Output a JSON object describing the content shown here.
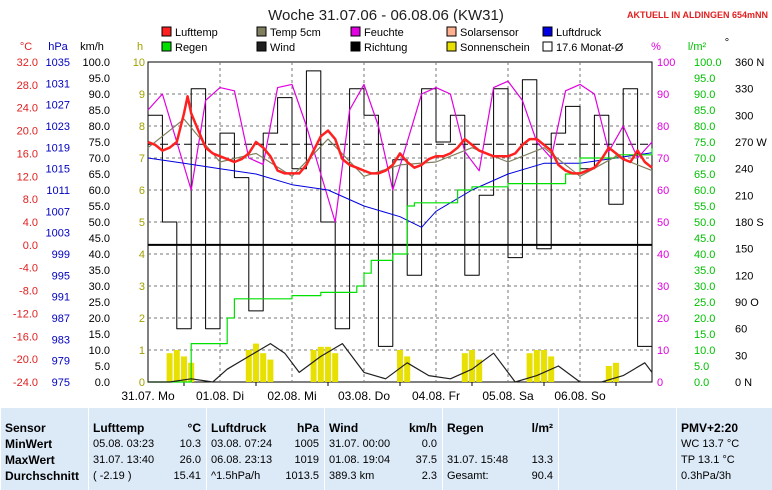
{
  "header": {
    "title": "Woche 31.07.06 - 06.08.06 (KW31)",
    "live_label": "AKTUELL IN ALDINGEN 654mNN"
  },
  "axes": {
    "unit_c": "°C",
    "unit_hpa": "hPa",
    "unit_kmh": "km/h",
    "unit_h": "h",
    "unit_pct": "%",
    "unit_lm2": "l/m²",
    "unit_deg": "°",
    "temp_ticks": [
      "32.0",
      "28.0",
      "24.0",
      "20.0",
      "16.0",
      "12.0",
      "8.0",
      "4.0",
      "0.0",
      "-4.0",
      "-8.0",
      "-12.0",
      "-16.0",
      "-20.0",
      "-24.0"
    ],
    "pressure_ticks": [
      "1035",
      "1031",
      "1027",
      "1023",
      "1019",
      "1015",
      "1011",
      "1007",
      "1003",
      "999",
      "995",
      "991",
      "987",
      "983",
      "979",
      "975"
    ],
    "wind_ticks": [
      "100.0",
      "95.0",
      "90.0",
      "85.0",
      "80.0",
      "75.0",
      "70.0",
      "65.0",
      "60.0",
      "55.0",
      "50.0",
      "45.0",
      "40.0",
      "35.0",
      "30.0",
      "25.0",
      "20.0",
      "15.0",
      "10.0",
      "5.0",
      "0.0"
    ],
    "sun_ticks": [
      "10",
      "9",
      "8",
      "7",
      "6",
      "5",
      "4",
      "3",
      "2",
      "1",
      "0"
    ],
    "humidity_ticks": [
      "100",
      "90",
      "80",
      "70",
      "60",
      "50",
      "40",
      "30",
      "20",
      "10",
      "0"
    ],
    "rain_ticks": [
      "100.0",
      "95.0",
      "90.0",
      "85.0",
      "80.0",
      "75.0",
      "70.0",
      "65.0",
      "60.0",
      "55.0",
      "50.0",
      "45.0",
      "40.0",
      "35.0",
      "30.0",
      "25.0",
      "20.0",
      "15.0",
      "10.0",
      "5.0",
      "0.0"
    ],
    "dir_ticks": [
      "360 N",
      "330",
      "300",
      "270 W",
      "240",
      "210",
      "180 S",
      "150",
      "120",
      "90 O",
      "60",
      "30",
      "0 N"
    ],
    "day_labels": [
      "31.07. Mo",
      "01.08. Di",
      "02.08. Mi",
      "03.08. Do",
      "04.08. Fr",
      "05.08. Sa",
      "06.08. So"
    ]
  },
  "legend": [
    {
      "label": "Lufttemp",
      "color": "#ff2020"
    },
    {
      "label": "Temp 5cm",
      "color": "#808060"
    },
    {
      "label": "Feuchte",
      "color": "#e000e0"
    },
    {
      "label": "Solarsensor",
      "color": "#ffb090"
    },
    {
      "label": "Luftdruck",
      "color": "#0000e0"
    },
    {
      "label": "Regen",
      "color": "#00e000"
    },
    {
      "label": "Wind",
      "color": "#202020"
    },
    {
      "label": "Richtung",
      "color": "#000000"
    },
    {
      "label": "Sonnenschein",
      "color": "#e8e000"
    },
    {
      "label": "17.6 Monat-Ø",
      "color": "#ffffff"
    }
  ],
  "chart_data": {
    "type": "line",
    "x_unit": "days since 31.07.06 00:00",
    "x_range": [
      0,
      7
    ],
    "reference_lines": {
      "month_avg_temp_c": 17.6,
      "temp_zero_c": 0
    },
    "series": [
      {
        "name": "Lufttemp",
        "axis": "°C",
        "x": [
          0,
          0.1,
          0.2,
          0.3,
          0.4,
          0.5,
          0.55,
          0.6,
          0.7,
          0.8,
          0.9,
          1,
          1.1,
          1.2,
          1.3,
          1.4,
          1.5,
          1.6,
          1.7,
          1.8,
          1.9,
          2,
          2.1,
          2.2,
          2.3,
          2.4,
          2.5,
          2.6,
          2.7,
          2.8,
          2.9,
          3,
          3.1,
          3.2,
          3.3,
          3.4,
          3.5,
          3.6,
          3.7,
          3.8,
          3.9,
          4,
          4.1,
          4.2,
          4.3,
          4.4,
          4.5,
          4.6,
          4.7,
          4.8,
          4.9,
          5,
          5.1,
          5.2,
          5.3,
          5.4,
          5.5,
          5.6,
          5.7,
          5.8,
          5.9,
          6,
          6.1,
          6.2,
          6.3,
          6.4,
          6.5,
          6.6,
          6.7,
          6.8,
          6.9,
          7
        ],
        "y": [
          18,
          17.5,
          16.5,
          17,
          18,
          23,
          26,
          23,
          20,
          17,
          16,
          15.5,
          15,
          14.5,
          15,
          16,
          18,
          17,
          15.5,
          13,
          12.5,
          12.5,
          12.5,
          14,
          16.5,
          19,
          20,
          18.5,
          15,
          14,
          13.5,
          13,
          12.5,
          12.5,
          13,
          14,
          16,
          14.5,
          13.5,
          14,
          15,
          15.5,
          15.5,
          16,
          17,
          18.5,
          17.5,
          16.5,
          16,
          15.5,
          15.5,
          15.5,
          16,
          17.5,
          18.5,
          18.5,
          17.5,
          16.5,
          14,
          13,
          12.5,
          12.5,
          13,
          13.5,
          15,
          17,
          16,
          15,
          14.5,
          16.5,
          14.5,
          13.5
        ]
      },
      {
        "name": "Temp 5cm",
        "axis": "°C",
        "x": [
          0,
          0.5,
          1,
          1.5,
          2,
          2.5,
          3,
          3.5,
          4,
          4.5,
          5,
          5.5,
          6,
          6.5,
          7
        ],
        "y": [
          17,
          22,
          14.5,
          16,
          12,
          18.5,
          12,
          14,
          14.5,
          17,
          14.5,
          17,
          12,
          15.5,
          13
        ]
      },
      {
        "name": "Feuchte",
        "axis": "%",
        "x": [
          0,
          0.2,
          0.4,
          0.6,
          0.8,
          1,
          1.2,
          1.4,
          1.6,
          1.8,
          2,
          2.2,
          2.4,
          2.6,
          2.8,
          3,
          3.2,
          3.4,
          3.6,
          3.8,
          4,
          4.2,
          4.4,
          4.6,
          4.8,
          5,
          5.2,
          5.4,
          5.6,
          5.8,
          6,
          6.2,
          6.4,
          6.6,
          6.8,
          7
        ],
        "y": [
          85,
          90,
          75,
          60,
          88,
          92,
          91,
          70,
          68,
          92,
          93,
          80,
          65,
          50,
          85,
          93,
          80,
          60,
          75,
          90,
          92,
          90,
          72,
          66,
          92,
          94,
          88,
          75,
          70,
          91,
          93,
          90,
          72,
          80,
          70,
          75
        ]
      },
      {
        "name": "Luftdruck",
        "axis": "hPa",
        "x": [
          0,
          0.5,
          1,
          1.5,
          2,
          2.5,
          3,
          3.5,
          3.8,
          4,
          4.5,
          5,
          5.5,
          6,
          6.5,
          7
        ],
        "y": [
          1017,
          1016,
          1015,
          1014,
          1012,
          1011,
          1008,
          1006,
          1004,
          1007,
          1011,
          1014,
          1016,
          1016,
          1017,
          1018
        ]
      },
      {
        "name": "Regen",
        "axis": "l/m²",
        "x": [
          0,
          0.4,
          0.6,
          1.1,
          1.2,
          2,
          2.4,
          2.9,
          3,
          3.1,
          3.4,
          3.6,
          3.7,
          4.3,
          4.5,
          5,
          5.5,
          5.8,
          6,
          6.5,
          7
        ],
        "y": [
          0,
          0,
          12,
          20,
          26,
          27,
          28,
          30,
          34,
          38,
          40,
          55,
          56,
          60,
          61,
          62,
          62,
          65,
          70,
          71,
          73
        ]
      },
      {
        "name": "Wind",
        "axis": "km/h",
        "x": [
          0,
          0.3,
          0.6,
          0.9,
          1.1,
          1.4,
          1.7,
          1.9,
          2.1,
          2.4,
          2.7,
          3,
          3.3,
          3.6,
          3.9,
          4.2,
          4.5,
          4.8,
          5.1,
          5.4,
          5.7,
          6,
          6.3,
          6.6,
          6.9,
          7
        ],
        "y": [
          0,
          0,
          1,
          0,
          4,
          8,
          12,
          9,
          3,
          8,
          12,
          3,
          1,
          6,
          2,
          1,
          4,
          9,
          0,
          2,
          5,
          0,
          0,
          2,
          6,
          3
        ]
      },
      {
        "name": "Richtung",
        "axis": "°",
        "x": [
          0,
          0.2,
          0.4,
          0.6,
          0.8,
          1,
          1.2,
          1.4,
          1.6,
          1.8,
          2,
          2.2,
          2.4,
          2.6,
          2.8,
          3,
          3.2,
          3.4,
          3.6,
          3.8,
          4,
          4.2,
          4.4,
          4.6,
          4.8,
          5,
          5.2,
          5.4,
          5.6,
          5.8,
          6,
          6.2,
          6.4,
          6.6,
          6.8,
          7
        ],
        "y": [
          300,
          180,
          60,
          330,
          60,
          280,
          230,
          80,
          280,
          320,
          240,
          350,
          180,
          60,
          330,
          300,
          40,
          250,
          120,
          330,
          270,
          300,
          120,
          210,
          330,
          140,
          340,
          150,
          280,
          310,
          240,
          300,
          200,
          330,
          40,
          200
        ]
      },
      {
        "name": "Sonnenschein",
        "axis": "h",
        "x": [
          0.3,
          0.4,
          0.5,
          0.6,
          1.4,
          1.5,
          1.6,
          1.7,
          2.3,
          2.4,
          2.5,
          2.6,
          3.5,
          3.6,
          4.4,
          4.5,
          4.6,
          5.3,
          5.4,
          5.5,
          5.6,
          6.4,
          6.5
        ],
        "y": [
          0.9,
          1,
          0.8,
          0.6,
          1,
          1.2,
          0.9,
          0.7,
          1,
          1.1,
          1.1,
          0.9,
          1,
          0.8,
          0.9,
          1,
          0.7,
          0.9,
          1,
          1,
          0.8,
          0.5,
          0.6
        ]
      }
    ]
  },
  "table": {
    "sensor": {
      "header": "Sensor",
      "rows": [
        "MinWert",
        "MaxWert",
        "Durchschnitt"
      ]
    },
    "lufttemp": {
      "header": "Lufttemp",
      "unit": "°C",
      "rows": [
        [
          "05.08.  03:23",
          "10.3"
        ],
        [
          "31.07.  13:40",
          "26.0"
        ],
        [
          "( -2.19 )",
          "15.41"
        ]
      ]
    },
    "luftdruck": {
      "header": "Luftdruck",
      "unit": "hPa",
      "rows": [
        [
          "03.08.  07:24",
          "1005"
        ],
        [
          "06.08.  23:13",
          "1019"
        ],
        [
          "^1.5hPa/h",
          "1013.5"
        ]
      ]
    },
    "wind": {
      "header": "Wind",
      "unit": "km/h",
      "rows": [
        [
          "31.07.  00:00",
          "0.0"
        ],
        [
          "01.08.  19:04",
          "37.5"
        ],
        [
          "389.3 km",
          "2.3"
        ]
      ]
    },
    "regen": {
      "header": "Regen",
      "unit": "l/m²",
      "rows": [
        [
          "",
          ""
        ],
        [
          "31.07.  15:48",
          "13.3"
        ],
        [
          "Gesamt:",
          "90.4"
        ]
      ]
    },
    "pmv": {
      "header": "PMV+2:20",
      "rows": [
        "WC 13.7 °C",
        "TP 13.1 °C",
        "0.3hPa/3h"
      ]
    }
  }
}
